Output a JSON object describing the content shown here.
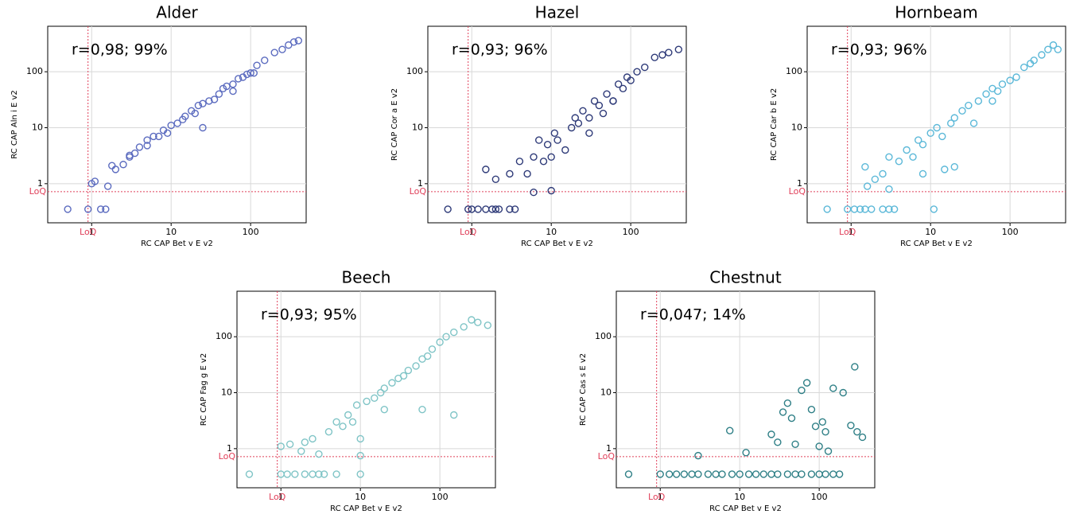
{
  "chart_data": [
    {
      "type": "scatter",
      "title": "Alder",
      "annotation": "r=0,98; 99%",
      "x_label": "RC CAP Bet v E v2",
      "y_label": "RC CAP Aln i E v2",
      "color": "#5b6bbf",
      "x": [
        0.5,
        0.9,
        1.3,
        1.5,
        1.0,
        1.1,
        1.8,
        2,
        2.5,
        3,
        3.5,
        4,
        5,
        5,
        6,
        7,
        8,
        9,
        10,
        12,
        14,
        15,
        18,
        20,
        22,
        25,
        30,
        35,
        40,
        45,
        50,
        60,
        70,
        80,
        90,
        100,
        120,
        150,
        200,
        250,
        300,
        350,
        400,
        1.6,
        3,
        25,
        60,
        110
      ],
      "y": [
        0.35,
        0.35,
        0.35,
        0.35,
        1.0,
        1.1,
        2.1,
        1.8,
        2.2,
        3,
        3.5,
        4.5,
        4.8,
        6,
        7,
        7,
        9,
        8,
        11,
        12,
        14,
        16,
        20,
        18,
        25,
        27,
        30,
        32,
        40,
        50,
        55,
        60,
        75,
        80,
        90,
        95,
        130,
        160,
        220,
        250,
        300,
        340,
        360,
        0.9,
        3.2,
        10,
        45,
        95
      ],
      "xlim": [
        0.28,
        500
      ],
      "ylim": [
        0.2,
        650
      ],
      "xticks": [
        1,
        10,
        100
      ],
      "yticks": [
        1,
        10,
        100
      ],
      "log_x": true,
      "log_y": true,
      "grid": true,
      "loq": {
        "x": 0.9,
        "y": 0.72,
        "label": "LoQ"
      }
    },
    {
      "type": "scatter",
      "title": "Hazel",
      "annotation": "r=0,93; 96%",
      "x_label": "RC CAP Bet v E v2",
      "y_label": "RC CAP Cor a E v2",
      "color": "#2e3a78",
      "x": [
        0.5,
        0.9,
        1,
        1.2,
        1.5,
        1.8,
        2,
        2.2,
        3,
        3.5,
        1.5,
        2,
        3,
        4,
        5,
        6,
        7,
        8,
        9,
        10,
        11,
        12,
        15,
        18,
        20,
        22,
        25,
        30,
        35,
        40,
        45,
        50,
        60,
        70,
        80,
        90,
        100,
        120,
        150,
        200,
        250,
        300,
        400,
        6,
        10,
        30,
        60
      ],
      "y": [
        0.35,
        0.35,
        0.35,
        0.35,
        0.35,
        0.35,
        0.35,
        0.35,
        0.35,
        0.35,
        1.8,
        1.2,
        1.5,
        2.5,
        1.5,
        3,
        6,
        2.5,
        5,
        0.75,
        8,
        6,
        4,
        10,
        15,
        12,
        20,
        8,
        30,
        25,
        18,
        40,
        30,
        60,
        50,
        80,
        70,
        100,
        120,
        180,
        200,
        220,
        250,
        0.7,
        3,
        15,
        30
      ],
      "xlim": [
        0.28,
        500
      ],
      "ylim": [
        0.2,
        650
      ],
      "xticks": [
        1,
        10,
        100
      ],
      "yticks": [
        1,
        10,
        100
      ],
      "log_x": true,
      "log_y": true,
      "grid": true,
      "loq": {
        "x": 0.9,
        "y": 0.72,
        "label": "LoQ"
      }
    },
    {
      "type": "scatter",
      "title": "Hornbeam",
      "annotation": "r=0,93; 96%",
      "x_label": "RC CAP Bet v E v2",
      "y_label": "RC CAP Car b E v2",
      "color": "#5bb8d8",
      "x": [
        0.5,
        0.9,
        1.1,
        1.3,
        1.5,
        1.8,
        2.5,
        3,
        3.5,
        11,
        1.5,
        2,
        2.5,
        3,
        4,
        5,
        6,
        7,
        8,
        10,
        12,
        14,
        15,
        18,
        20,
        25,
        30,
        35,
        40,
        50,
        60,
        70,
        80,
        100,
        120,
        150,
        180,
        200,
        250,
        300,
        350,
        400,
        1.6,
        3,
        8,
        20,
        60
      ],
      "y": [
        0.35,
        0.35,
        0.35,
        0.35,
        0.35,
        0.35,
        0.35,
        0.35,
        0.35,
        0.35,
        2,
        1.2,
        1.5,
        3,
        2.5,
        4,
        3,
        6,
        5,
        8,
        10,
        7,
        1.8,
        12,
        15,
        20,
        25,
        12,
        30,
        40,
        50,
        45,
        60,
        70,
        80,
        120,
        140,
        160,
        200,
        250,
        300,
        250,
        0.9,
        0.8,
        1.5,
        2,
        30
      ],
      "xlim": [
        0.28,
        500
      ],
      "ylim": [
        0.2,
        650
      ],
      "xticks": [
        1,
        10,
        100
      ],
      "yticks": [
        1,
        10,
        100
      ],
      "log_x": true,
      "log_y": true,
      "grid": true,
      "loq": {
        "x": 0.9,
        "y": 0.72,
        "label": "LoQ"
      }
    },
    {
      "type": "scatter",
      "title": "Beech",
      "annotation": "r=0,93; 95%",
      "x_label": "RC CAP Bet v E v2",
      "y_label": "RC CAP Fag g E v2",
      "color": "#7fc4c6",
      "x": [
        0.4,
        1,
        1.2,
        1.5,
        2,
        2.5,
        3,
        3.5,
        5,
        10,
        1,
        1.3,
        1.8,
        2,
        2.5,
        3,
        4,
        5,
        6,
        7,
        8,
        9,
        10,
        12,
        15,
        18,
        20,
        25,
        30,
        35,
        40,
        50,
        60,
        70,
        80,
        100,
        120,
        150,
        200,
        250,
        300,
        400,
        10,
        20,
        60,
        150
      ],
      "y": [
        0.35,
        0.35,
        0.35,
        0.35,
        0.35,
        0.35,
        0.35,
        0.35,
        0.35,
        0.35,
        1.1,
        1.2,
        0.9,
        1.3,
        1.5,
        0.8,
        2,
        3,
        2.5,
        4,
        3,
        6,
        0.75,
        7,
        8,
        10,
        12,
        15,
        18,
        20,
        25,
        30,
        40,
        45,
        60,
        80,
        100,
        120,
        150,
        200,
        180,
        160,
        1.5,
        5,
        5,
        4
      ],
      "xlim": [
        0.28,
        500
      ],
      "ylim": [
        0.2,
        650
      ],
      "xticks": [
        1,
        10,
        100
      ],
      "yticks": [
        1,
        10,
        100
      ],
      "log_x": true,
      "log_y": true,
      "grid": true,
      "loq": {
        "x": 0.9,
        "y": 0.72,
        "label": "LoQ"
      }
    },
    {
      "type": "scatter",
      "title": "Chestnut",
      "annotation": "r=0,047; 14%",
      "x_label": "RC CAP Bet v E v2",
      "y_label": "RC CAP Cas s E v2",
      "color": "#2e7f86",
      "x": [
        0.4,
        1,
        1.3,
        1.6,
        2,
        2.5,
        3,
        4,
        5,
        6,
        8,
        10,
        13,
        16,
        20,
        25,
        30,
        40,
        50,
        60,
        80,
        100,
        120,
        150,
        180,
        3,
        7.5,
        12,
        25,
        30,
        35,
        40,
        45,
        50,
        60,
        70,
        80,
        90,
        100,
        110,
        120,
        130,
        150,
        200,
        250,
        280,
        300,
        350
      ],
      "y": [
        0.35,
        0.35,
        0.35,
        0.35,
        0.35,
        0.35,
        0.35,
        0.35,
        0.35,
        0.35,
        0.35,
        0.35,
        0.35,
        0.35,
        0.35,
        0.35,
        0.35,
        0.35,
        0.35,
        0.35,
        0.35,
        0.35,
        0.35,
        0.35,
        0.35,
        0.75,
        2.1,
        0.85,
        1.8,
        1.3,
        4.5,
        6.5,
        3.5,
        1.2,
        11,
        15,
        5,
        2.5,
        1.1,
        3,
        2,
        0.9,
        12,
        10,
        2.6,
        29,
        2,
        1.6
      ],
      "xlim": [
        0.28,
        500
      ],
      "ylim": [
        0.2,
        650
      ],
      "xticks": [
        1,
        10,
        100
      ],
      "yticks": [
        1,
        10,
        100
      ],
      "log_x": true,
      "log_y": true,
      "grid": true,
      "loq": {
        "x": 0.9,
        "y": 0.72,
        "label": "LoQ"
      }
    }
  ]
}
